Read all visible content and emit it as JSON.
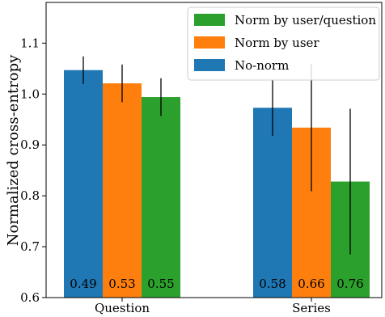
{
  "chart_data": {
    "type": "bar",
    "title": "",
    "xlabel": "",
    "ylabel": "Normalized cross-entropy",
    "ylim": [
      0.6,
      1.18
    ],
    "yticks": [
      "0.6",
      "0.7",
      "0.8",
      "0.9",
      "1.0",
      "1.1"
    ],
    "categories": [
      "Question",
      "Series"
    ],
    "grid": false,
    "legend_position": "top-right",
    "colors": {
      "No-norm": "#1f77b4",
      "Norm by user": "#ff7f0e",
      "Norm by user/question": "#2ca02c"
    },
    "series": [
      {
        "name": "No-norm",
        "values": [
          1.047,
          0.973
        ],
        "error": [
          0.027,
          0.055
        ],
        "labels": [
          "0.49",
          "0.58"
        ]
      },
      {
        "name": "Norm by user",
        "values": [
          1.021,
          0.934
        ],
        "error": [
          0.037,
          0.125
        ],
        "labels": [
          "0.53",
          "0.66"
        ]
      },
      {
        "name": "Norm by user/question",
        "values": [
          0.994,
          0.828
        ],
        "error": [
          0.037,
          0.143
        ],
        "labels": [
          "0.55",
          "0.76"
        ]
      }
    ],
    "legend_order": [
      "Norm by user/question",
      "Norm by user",
      "No-norm"
    ]
  }
}
